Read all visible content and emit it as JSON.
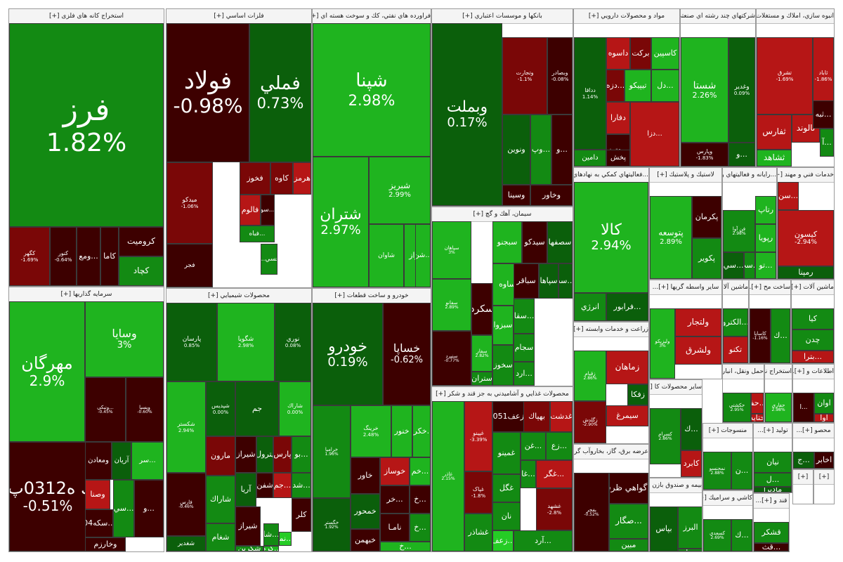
{
  "sectors": [
    {
      "id": "metal-mining",
      "title": "استخراج کانه های فلزی [+]",
      "tiles": [
        {
          "sym": "فرز",
          "pct": "1.82%",
          "c": "g"
        },
        {
          "sym": "کرومیت",
          "c": "dr"
        },
        {
          "sym": "کگهر",
          "pct": "-1.69%",
          "c": "r"
        },
        {
          "sym": "کچاد",
          "c": "g"
        },
        {
          "sym": "کاما",
          "c": "dr"
        },
        {
          "sym": "...ومع",
          "c": "dr"
        },
        {
          "sym": "کنور",
          "pct": "-0.64%",
          "c": "dr"
        }
      ]
    },
    {
      "id": "basic-metals",
      "title": "فلزات اساسي [+]",
      "tiles": [
        {
          "sym": "فولاد",
          "pct": "-0.98%",
          "c": "dr"
        },
        {
          "sym": "فملي",
          "pct": "0.73%",
          "c": "dg"
        },
        {
          "sym": "هرمز",
          "c": "lr"
        },
        {
          "sym": "کاوه",
          "c": "r"
        },
        {
          "sym": "فخوز",
          "c": "r"
        },
        {
          "sym": "ميدکو",
          "pct": "-1.06%",
          "c": "r"
        },
        {
          "sym": "فالوم",
          "c": "lr"
        },
        {
          "sym": "...فباه",
          "c": "g"
        },
        {
          "sym": "...سو",
          "c": "dr"
        },
        {
          "sym": "فسي...",
          "c": "g"
        },
        {
          "sym": "فجر",
          "c": "dr"
        }
      ]
    },
    {
      "id": "petroleum",
      "title": "فراورده هاي نفتي، كك و سوخت هسته اي [+]",
      "tiles": [
        {
          "sym": "شپنا",
          "pct": "2.98%",
          "c": "lg"
        },
        {
          "sym": "شتران",
          "pct": "2.97%",
          "c": "lg"
        },
        {
          "sym": "شبريز",
          "pct": "2.99%",
          "c": "lg"
        },
        {
          "sym": "شراز",
          "c": "lg"
        },
        {
          "sym": "...شن",
          "c": "lg"
        },
        {
          "sym": "شاوان",
          "c": "lg"
        }
      ]
    },
    {
      "id": "banks",
      "title": "بانكها و موسسات اعتباري [+]",
      "tiles": [
        {
          "sym": "وبملت",
          "pct": "0.17%",
          "c": "dg"
        },
        {
          "sym": "وتجارت",
          "pct": "-1.1%",
          "c": "r"
        },
        {
          "sym": "وبصادر",
          "pct": "-0.08%",
          "c": "dr"
        },
        {
          "sym": "ونوين",
          "c": "dg"
        },
        {
          "sym": "وسينا",
          "c": "dr"
        },
        {
          "sym": "...وپ",
          "c": "g"
        },
        {
          "sym": "...و",
          "c": "dr"
        },
        {
          "sym": "وخاور",
          "c": "dr"
        }
      ]
    },
    {
      "id": "pharma",
      "title": "مواد و محصولات دارويي [+]",
      "tiles": [
        {
          "sym": "دداقا",
          "pct": "1.14%",
          "c": "dg"
        },
        {
          "sym": "كاسپين",
          "c": "lg"
        },
        {
          "sym": "بركت",
          "c": "r"
        },
        {
          "sym": "داسوه",
          "c": "lr"
        },
        {
          "sym": "...دل",
          "c": "lg"
        },
        {
          "sym": "تيپيكو",
          "c": "lg"
        },
        {
          "sym": "...دزه",
          "c": "r"
        },
        {
          "sym": "دفارا",
          "c": "lr"
        },
        {
          "sym": "...دتوز",
          "c": "dr"
        },
        {
          "sym": "دامين",
          "c": "g"
        },
        {
          "sym": "پخش",
          "c": "dr"
        },
        {
          "sym": "...دزا",
          "c": "lr"
        }
      ]
    },
    {
      "id": "multi-industry",
      "title": "شركتهاي چند رشته اي صنعتي [+]",
      "tiles": [
        {
          "sym": "شستا",
          "pct": "2.26%",
          "c": "lg"
        },
        {
          "sym": "وغدير",
          "pct": "0.09%",
          "c": "dg"
        },
        {
          "sym": "وپارس",
          "pct": "-1.83%",
          "c": "dr"
        },
        {
          "sym": "...و",
          "c": "dg"
        }
      ]
    },
    {
      "id": "real-estate",
      "title": "انبوه سازي، املاك و مستغلات [+]",
      "tiles": [
        {
          "sym": "تشرق",
          "pct": "-1.69%",
          "c": "lr"
        },
        {
          "sym": "ثاباد",
          "pct": "-1.86%",
          "c": "lr"
        },
        {
          "sym": "ثالوند",
          "c": "lr"
        },
        {
          "sym": "ثفارس",
          "c": "lr"
        },
        {
          "sym": "ثشاهد",
          "c": "lg"
        },
        {
          "sym": "...ثبه",
          "c": "dr"
        },
        {
          "sym": "...آ",
          "c": "g"
        }
      ]
    },
    {
      "id": "investment",
      "title": "سرمايه گذاريها [+]",
      "tiles": [
        {
          "sym": "مهرگان",
          "pct": "2.9%",
          "c": "lg"
        },
        {
          "sym": "وسايا",
          "pct": "3%",
          "c": "lg"
        },
        {
          "sym": "سك ه0312پ01",
          "pct": "-0.51%",
          "c": "dr"
        },
        {
          "sym": "...ونيكي",
          "pct": "-0.45%",
          "c": "dr"
        },
        {
          "sym": "ويسپا",
          "pct": "-0.60%",
          "c": "dr"
        },
        {
          "sym": "ومعادن",
          "c": "dr"
        },
        {
          "sym": "آريان",
          "c": "dg"
        },
        {
          "sym": "...سر",
          "c": "lg"
        },
        {
          "sym": "وصنا",
          "c": "lr"
        },
        {
          "sym": "...سكه04",
          "c": "dr"
        },
        {
          "sym": "وخارزم",
          "c": "dr"
        },
        {
          "sym": "...سي",
          "c": "g"
        },
        {
          "sym": "...و",
          "c": "dr"
        }
      ]
    },
    {
      "id": "chemical",
      "title": "محصولات شيميايي [+]",
      "tiles": [
        {
          "sym": "پارسان",
          "pct": "0.85%",
          "c": "dg"
        },
        {
          "sym": "شگويا",
          "pct": "2.98%",
          "c": "lg"
        },
        {
          "sym": "نوري",
          "pct": "0.08%",
          "c": "dg"
        },
        {
          "sym": "شكستر",
          "pct": "2.94%",
          "c": "lg"
        },
        {
          "sym": "شپديس",
          "pct": "0.00%",
          "c": "dg"
        },
        {
          "sym": "شاراك",
          "pct": "0.00%",
          "c": "lg"
        },
        {
          "sym": "جم",
          "c": "dg"
        },
        {
          "sym": "مارون",
          "c": "r"
        },
        {
          "sym": "شيراز",
          "c": "dr"
        },
        {
          "sym": "پترول",
          "c": "dg"
        },
        {
          "sym": "پارس",
          "c": "r"
        },
        {
          "sym": "...بو",
          "c": "g"
        },
        {
          "sym": "شفن",
          "c": "dr"
        },
        {
          "sym": "...جم",
          "c": "lr"
        },
        {
          "sym": "آريا",
          "c": "dg"
        },
        {
          "sym": "فارس",
          "pct": "-0.46%",
          "c": "dr"
        },
        {
          "sym": "...شد",
          "c": "g"
        },
        {
          "sym": "شاراك",
          "c": "g"
        },
        {
          "sym": "شيراز",
          "c": "dr"
        },
        {
          "sym": "كلر",
          "c": "dr"
        },
        {
          "sym": "شغدير",
          "c": "dg"
        },
        {
          "sym": "شغام",
          "c": "g"
        },
        {
          "sym": "شكربن",
          "c": "g"
        },
        {
          "sym": "...كرم",
          "c": "lg"
        },
        {
          "sym": "...شا",
          "c": "g"
        },
        {
          "sym": "...نما",
          "c": "br"
        }
      ]
    },
    {
      "id": "auto",
      "title": "خودرو و ساخت قطعات [+]",
      "tiles": [
        {
          "sym": "خودرو",
          "pct": "0.19%",
          "c": "dg"
        },
        {
          "sym": "خساپا",
          "pct": "-0.62%",
          "c": "dr"
        },
        {
          "sym": "خراميا",
          "pct": "1.96%",
          "c": "g"
        },
        {
          "sym": "خرينگ",
          "pct": "2.48%",
          "c": "lg"
        },
        {
          "sym": "خنور",
          "c": "lg"
        },
        {
          "sym": "...خكرم",
          "c": "lg"
        },
        {
          "sym": "خاور",
          "c": "dr"
        },
        {
          "sym": "خمحور",
          "c": "dg"
        },
        {
          "sym": "خبهمن",
          "c": "dr"
        },
        {
          "sym": "خگستر",
          "pct": "1.92%",
          "c": "dg"
        },
        {
          "sym": "خوساز",
          "c": "lr"
        },
        {
          "sym": "...خم",
          "c": "lg"
        },
        {
          "sym": "...خ",
          "c": "dr"
        },
        {
          "sym": "...خر",
          "c": "dr"
        },
        {
          "sym": "...خ",
          "c": "g"
        },
        {
          "sym": "نامـا",
          "c": "dr"
        },
        {
          "sym": "...خ",
          "c": "lg"
        }
      ]
    },
    {
      "id": "cement",
      "title": "سيمان، آهك و گچ [+]",
      "tiles": [
        {
          "sym": "سپاهان",
          "pct": "3%",
          "c": "lg"
        },
        {
          "sym": "سفانو",
          "pct": "2.89%",
          "c": "lg"
        },
        {
          "sym": "سبجنو",
          "c": "lg"
        },
        {
          "sym": "سيدكو",
          "c": "dr"
        },
        {
          "sym": "سصفها",
          "c": "dg"
        },
        {
          "sym": "ساوه",
          "c": "lg"
        },
        {
          "sym": "سباقر",
          "c": "dr"
        },
        {
          "sym": "سپاها",
          "c": "dg"
        },
        {
          "sym": "...سه",
          "c": "dg"
        },
        {
          "sym": "سكرد",
          "c": "dr"
        },
        {
          "sym": "سفار",
          "pct": "2.82%",
          "c": "lg"
        },
        {
          "sym": "...سقا",
          "c": "g"
        },
        {
          "sym": "سبزوا",
          "c": "lg"
        },
        {
          "sym": "سجام",
          "c": "g"
        },
        {
          "sym": "سنيرد",
          "pct": "-0.77%",
          "c": "dr"
        },
        {
          "sym": "ستران",
          "c": "g"
        },
        {
          "sym": "سخوز",
          "c": "g"
        },
        {
          "sym": "...ارد",
          "c": "g"
        }
      ]
    },
    {
      "id": "food",
      "title": "محصولات غذايي و آشاميدني به جز قند و شكر [+]",
      "tiles": [
        {
          "sym": "غاذر",
          "pct": "2.15%",
          "c": "lg"
        },
        {
          "sym": "...زعف051",
          "c": "dr"
        },
        {
          "sym": "بهپاك",
          "c": "r"
        },
        {
          "sym": "غدشت",
          "c": "lr"
        },
        {
          "sym": "غپينو",
          "pct": "-3.39%",
          "c": "lr"
        },
        {
          "sym": "غمينو",
          "c": "g"
        },
        {
          "sym": "...غن",
          "c": "g"
        },
        {
          "sym": "...زع",
          "c": "g"
        },
        {
          "sym": "غگل",
          "c": "g"
        },
        {
          "sym": "...غا",
          "c": "g"
        },
        {
          "sym": "...غگر",
          "c": "lr"
        },
        {
          "sym": "نان",
          "c": "g"
        },
        {
          "sym": "غپاک",
          "pct": "-1.8%",
          "c": "r"
        },
        {
          "sym": "غشاذر",
          "c": "g"
        },
        {
          "sym": "...زعف",
          "c": "br"
        },
        {
          "sym": "غبونه",
          "c": "lr"
        },
        {
          "sym": "...آرد",
          "c": "g"
        },
        {
          "sym": "غشهد",
          "pct": "-2.8%",
          "c": "r"
        }
      ]
    },
    {
      "id": "fin-services",
      "title": "...فعاليتهاي كمكي به نهادهاي مالي [+]",
      "tiles": [
        {
          "sym": "كالا",
          "pct": "2.94%",
          "c": "lg"
        },
        {
          "sym": "...فرابور",
          "c": "dg"
        },
        {
          "sym": "انرژي",
          "c": "g"
        }
      ]
    },
    {
      "id": "agriculture",
      "title": "زراعت و خدمات وابسته [+]",
      "tiles": [
        {
          "sym": "زقيام",
          "pct": "2.86%",
          "c": "lg"
        },
        {
          "sym": "زماهان",
          "c": "lr"
        },
        {
          "sym": "...زد",
          "c": "g"
        },
        {
          "sym": "زگلدش",
          "pct": "-2.90%",
          "c": "r"
        },
        {
          "sym": "زفكا",
          "c": "dg"
        },
        {
          "sym": "سيمرغ",
          "c": "lr"
        }
      ]
    },
    {
      "id": "utilities",
      "title": "عرضه برق، گاز، بخاروآب گرم [+]",
      "tiles": [
        {
          "sym": "بفجر",
          "pct": "-0.52%",
          "c": "dr"
        },
        {
          "sym": "...گواهي ظرف",
          "c": "dr"
        },
        {
          "sym": "...صگار",
          "c": "g"
        },
        {
          "sym": "مبين",
          "c": "g"
        }
      ]
    },
    {
      "id": "plastic",
      "title": "لاستيك و پلاستيك [+]",
      "tiles": [
        {
          "sym": "پتوسعه",
          "pct": "2.89%",
          "c": "lg"
        },
        {
          "sym": "پكرمان",
          "c": "dr"
        },
        {
          "sym": "پكوير",
          "c": "g"
        }
      ]
    },
    {
      "id": "it",
      "title": "...رايانه و فعاليتهاي و [+]",
      "tiles": [
        {
          "sym": "رتاپ",
          "c": "lg"
        },
        {
          "sym": "رپويا",
          "c": "lg"
        },
        {
          "sym": "فن آوا",
          "pct": "2.98%",
          "c": "g"
        },
        {
          "sym": "...تو",
          "c": "lg"
        },
        {
          "sym": "...سي",
          "c": "dg"
        },
        {
          "sym": "...سپ",
          "c": "g"
        }
      ]
    },
    {
      "id": "engineering",
      "title": "خدمات فني و مهند [+]...",
      "tiles": [
        {
          "sym": "كيسون",
          "pct": "-2.94%",
          "c": "lr"
        },
        {
          "sym": "رمپنا",
          "c": "dg"
        },
        {
          "sym": "...سن",
          "c": "lr"
        }
      ]
    },
    {
      "id": "trade-brokers",
      "title": "سایر واسطه گریها [+]...",
      "tiles": [
        {
          "sym": "ولتجار",
          "c": "lr"
        },
        {
          "sym": "ولشرق",
          "c": "lr"
        },
        {
          "sym": "وليزيكو",
          "pct": "3%",
          "c": "lg"
        }
      ]
    },
    {
      "id": "machinery",
      "title": "ماشين آلات و [+]...",
      "tiles": [
        {
          "sym": "...الكترو",
          "c": "g"
        },
        {
          "sym": "تكنو",
          "c": "lr"
        },
        {
          "sym": "...ت",
          "c": "g"
        }
      ]
    },
    {
      "id": "construction",
      "title": "ساخت مح [+]...",
      "tiles": [
        {
          "sym": "كاساپا",
          "pct": "-1.16%",
          "c": "dr"
        },
        {
          "sym": "...ك",
          "c": "g"
        }
      ]
    },
    {
      "id": "machinery-2",
      "title": "ماشين آلات [+]",
      "tiles": [
        {
          "sym": "كيا",
          "c": "g"
        },
        {
          "sym": "چدن",
          "c": "g"
        },
        {
          "sym": "...بترا",
          "c": "lr"
        }
      ]
    },
    {
      "id": "other-products",
      "title": "سایر محصولات کا [+]...",
      "tiles": [
        {
          "sym": "كسرام",
          "pct": "2.86%",
          "c": "g"
        },
        {
          "sym": "...ك",
          "c": "dg"
        },
        {
          "sym": "كابرد",
          "c": "lr"
        }
      ]
    },
    {
      "id": "transport",
      "title": "حمل ونقل، انبار [+]...",
      "tiles": [
        {
          "sym": "حكشتي",
          "pct": "2.95%",
          "c": "g"
        },
        {
          "sym": "...حفا",
          "c": "lr"
        },
        {
          "sym": "حتايد",
          "c": "lr"
        },
        {
          "sym": "...ح",
          "c": "dr"
        }
      ]
    },
    {
      "id": "extraction",
      "title": "استخراج نف [+]...",
      "tiles": [
        {
          "sym": "حفاري",
          "pct": "2.98%",
          "c": "lg"
        }
      ]
    },
    {
      "id": "information",
      "title": "اطلاعات و [+]...",
      "tiles": [
        {
          "sym": "اوان",
          "c": "g"
        },
        {
          "sym": "آوا",
          "c": "lr"
        },
        {
          "sym": "...ا",
          "c": "dr"
        }
      ]
    },
    {
      "id": "textile",
      "title": "منسوجات [+]",
      "tiles": [
        {
          "sym": "نمحنسو",
          "pct": "2.88%",
          "c": "g"
        },
        {
          "sym": "...ن",
          "c": "g"
        }
      ]
    },
    {
      "id": "tiles",
      "title": "كاشي و سراميك [+]",
      "tiles": [
        {
          "sym": "كسعدي",
          "pct": "2.69%",
          "c": "g"
        },
        {
          "sym": "...ك",
          "c": "g"
        }
      ]
    },
    {
      "id": "insurance",
      "title": "بيمه و صندوق بازن [+]...",
      "tiles": [
        {
          "sym": "بپاس",
          "c": "dg"
        },
        {
          "sym": "البرز",
          "c": "g"
        },
        {
          "sym": "...ا",
          "c": "g"
        }
      ]
    },
    {
      "id": "sugar",
      "title": "قند و [+]...",
      "tiles": [
        {
          "sym": "قشكر",
          "c": "g"
        },
        {
          "sym": "...قث",
          "c": "dr"
        }
      ]
    },
    {
      "id": "misc-1",
      "title": "توليد [+]...",
      "tiles": [
        {
          "sym": "نيان",
          "c": "g"
        },
        {
          "sym": "...ل",
          "c": "g"
        },
        {
          "sym": "ماديرا",
          "c": "dg"
        }
      ]
    },
    {
      "id": "misc-2",
      "title": "محصو [+]...",
      "tiles": [
        {
          "sym": "اخابر",
          "c": "dr"
        },
        {
          "sym": "...ج",
          "c": "dg"
        }
      ]
    },
    {
      "id": "misc-3",
      "title": "[+]",
      "tiles": []
    },
    {
      "id": "misc-4",
      "title": "[+]",
      "tiles": []
    }
  ]
}
